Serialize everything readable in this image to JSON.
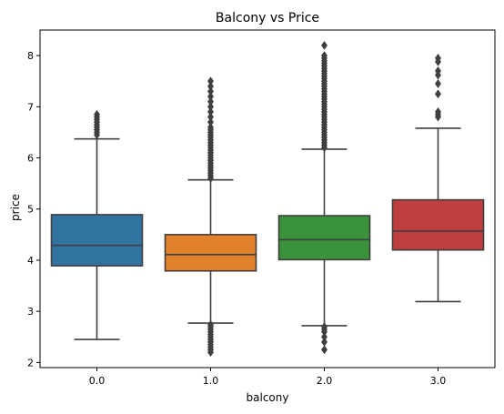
{
  "chart_data": {
    "type": "box",
    "title": "Balcony vs Price",
    "xlabel": "balcony",
    "ylabel": "price",
    "categories": [
      "0.0",
      "1.0",
      "2.0",
      "3.0"
    ],
    "ylim": [
      1.9,
      8.5
    ],
    "yticks": [
      2,
      3,
      4,
      5,
      6,
      7,
      8
    ],
    "grid": false,
    "legend": "none",
    "boxes": [
      {
        "category": "0.0",
        "color": "#3274a1",
        "whisker_low": 2.45,
        "q1": 3.89,
        "median": 4.29,
        "q3": 4.89,
        "whisker_high": 6.37,
        "outliers": [
          6.45,
          6.5,
          6.55,
          6.6,
          6.65,
          6.7,
          6.75,
          6.8,
          6.85
        ]
      },
      {
        "category": "1.0",
        "color": "#e1812c",
        "whisker_low": 2.77,
        "q1": 3.79,
        "median": 4.11,
        "q3": 4.5,
        "whisker_high": 5.57,
        "outliers": [
          2.2,
          2.25,
          2.3,
          2.35,
          2.4,
          2.45,
          2.5,
          2.55,
          2.6,
          2.65,
          2.7,
          2.74,
          5.6,
          5.65,
          5.7,
          5.75,
          5.8,
          5.85,
          5.9,
          5.95,
          6.0,
          6.05,
          6.1,
          6.15,
          6.2,
          6.25,
          6.3,
          6.35,
          6.4,
          6.45,
          6.5,
          6.55,
          6.6,
          6.7,
          6.8,
          6.9,
          7.0,
          7.1,
          7.2,
          7.3,
          7.4,
          7.5
        ]
      },
      {
        "category": "2.0",
        "color": "#3a923a",
        "whisker_low": 2.72,
        "q1": 4.01,
        "median": 4.4,
        "q3": 4.87,
        "whisker_high": 6.17,
        "outliers": [
          2.25,
          2.4,
          2.5,
          2.6,
          2.65,
          2.7,
          6.2,
          6.25,
          6.3,
          6.35,
          6.4,
          6.45,
          6.5,
          6.55,
          6.6,
          6.65,
          6.7,
          6.75,
          6.8,
          6.85,
          6.9,
          6.95,
          7.0,
          7.05,
          7.1,
          7.15,
          7.2,
          7.25,
          7.3,
          7.35,
          7.4,
          7.45,
          7.5,
          7.55,
          7.6,
          7.65,
          7.7,
          7.75,
          7.8,
          7.85,
          7.9,
          7.95,
          8.0,
          8.2
        ]
      },
      {
        "category": "3.0",
        "color": "#c03d3e",
        "whisker_low": 3.19,
        "q1": 4.2,
        "median": 4.57,
        "q3": 5.18,
        "whisker_high": 6.58,
        "outliers": [
          6.8,
          6.85,
          6.9,
          7.25,
          7.45,
          7.62,
          7.7,
          7.88,
          7.95
        ]
      }
    ]
  }
}
